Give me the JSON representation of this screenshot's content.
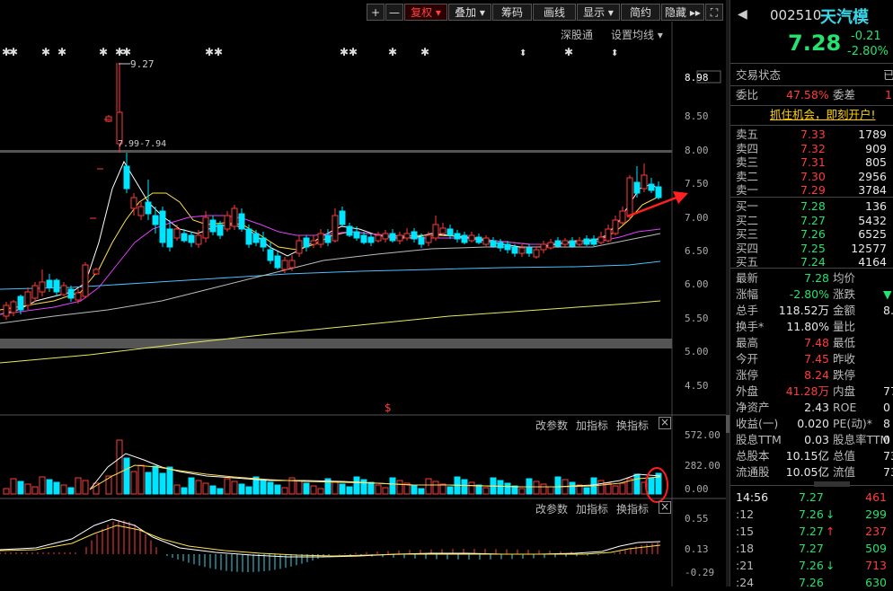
{
  "toolbar": {
    "plus": "+",
    "minus": "—",
    "fuquan": "复权",
    "diejia": "叠加",
    "chouma": "筹码",
    "huaxian": "画线",
    "xianshi": "显示",
    "jianyue": "简约",
    "yincang": "隐藏"
  },
  "chart_header": {
    "shengutong": "深股通",
    "set_ma": "设置均线"
  },
  "annotations": {
    "high_label": "9.27",
    "range_label": "7.99-7.94",
    "dollar": "$"
  },
  "price_axis": [
    "8.98",
    "8.50",
    "8.00",
    "7.50",
    "7.00",
    "6.50",
    "6.00",
    "5.50",
    "5.00",
    "4.50"
  ],
  "vol_axis": [
    "572.00",
    "282.00",
    "0.00"
  ],
  "macd_axis": [
    "0.55",
    "0.13",
    "-0.29"
  ],
  "sub_toolbar": {
    "gai": "改参数",
    "jia": "加指标",
    "huan": "换指标",
    "close": "×"
  },
  "stock": {
    "code": "002510",
    "name": "天汽模",
    "price": "7.28",
    "change": "-0.21",
    "pct": "-2.80%"
  },
  "status": {
    "label": "交易状态",
    "value": "已"
  },
  "weibi": {
    "label": "委比",
    "value": "47.58%",
    "label2": "委差",
    "value2": "1"
  },
  "promo": "抓住机会，即刻开户!",
  "asks": [
    {
      "label": "卖五",
      "price": "7.33",
      "vol": "1789"
    },
    {
      "label": "卖四",
      "price": "7.32",
      "vol": "909"
    },
    {
      "label": "卖三",
      "price": "7.31",
      "vol": "805"
    },
    {
      "label": "卖二",
      "price": "7.30",
      "vol": "2956"
    },
    {
      "label": "卖一",
      "price": "7.29",
      "vol": "3784"
    }
  ],
  "bids": [
    {
      "label": "买一",
      "price": "7.28",
      "vol": "136"
    },
    {
      "label": "买二",
      "price": "7.27",
      "vol": "5432"
    },
    {
      "label": "买三",
      "price": "7.26",
      "vol": "6525"
    },
    {
      "label": "买四",
      "price": "7.25",
      "vol": "12577"
    },
    {
      "label": "买五",
      "price": "7.24",
      "vol": "4164"
    }
  ],
  "stats": [
    {
      "l1": "最新",
      "v1": "7.28",
      "c1": "green",
      "l2": "均价",
      "v2": ""
    },
    {
      "l1": "涨幅",
      "v1": "-2.80%",
      "c1": "green",
      "l2": "涨跌",
      "v2": "▼"
    },
    {
      "l1": "总手",
      "v1": "118.52万",
      "c1": "white",
      "l2": "金额",
      "v2": "8."
    },
    {
      "l1": "换手*",
      "v1": "11.80%",
      "c1": "white",
      "l2": "量比",
      "v2": ""
    },
    {
      "l1": "最高",
      "v1": "7.48",
      "c1": "red",
      "l2": "最低",
      "v2": ""
    },
    {
      "l1": "今开",
      "v1": "7.45",
      "c1": "red",
      "l2": "昨收",
      "v2": ""
    },
    {
      "l1": "涨停",
      "v1": "8.24",
      "c1": "red",
      "l2": "跌停",
      "v2": ""
    },
    {
      "l1": "外盘",
      "v1": "41.28万",
      "c1": "red",
      "l2": "内盘",
      "v2": "77."
    },
    {
      "l1": "净资产",
      "v1": "2.43",
      "c1": "white",
      "l2": "ROE",
      "v2": "0"
    },
    {
      "l1": "收益(一)",
      "v1": "0.020",
      "c1": "white",
      "l2": "PE(动)*",
      "v2": "8"
    },
    {
      "l1": "股息TTM",
      "v1": "0.03",
      "c1": "white",
      "l2": "股息率TTM",
      "v2": "0"
    },
    {
      "l1": "总股本",
      "v1": "10.15亿",
      "c1": "white",
      "l2": "总值",
      "v2": "73."
    },
    {
      "l1": "流通股",
      "v1": "10.05亿",
      "c1": "white",
      "l2": "流值",
      "v2": "73."
    }
  ],
  "ticks": [
    {
      "time": "14:56",
      "price": "7.27",
      "arrow": "",
      "vol": "461"
    },
    {
      "time": ":12",
      "price": "7.26",
      "arrow": "↓",
      "vol": "299"
    },
    {
      "time": ":15",
      "price": "7.27",
      "arrow": "↑",
      "vol": "237"
    },
    {
      "time": ":18",
      "price": "7.27",
      "arrow": "",
      "vol": "509"
    },
    {
      "time": ":21",
      "price": "7.26",
      "arrow": "↓",
      "vol": "713"
    },
    {
      "time": ":24",
      "price": "7.26",
      "arrow": "",
      "vol": "630"
    }
  ],
  "colors": {
    "up": "#ff3b3b",
    "down": "#00e5ff",
    "ma5": "#ffffff",
    "ma10": "#ffe14d",
    "ma20": "#e040fb",
    "ma30": "#48c0ff",
    "ma60": "#ffff66"
  }
}
